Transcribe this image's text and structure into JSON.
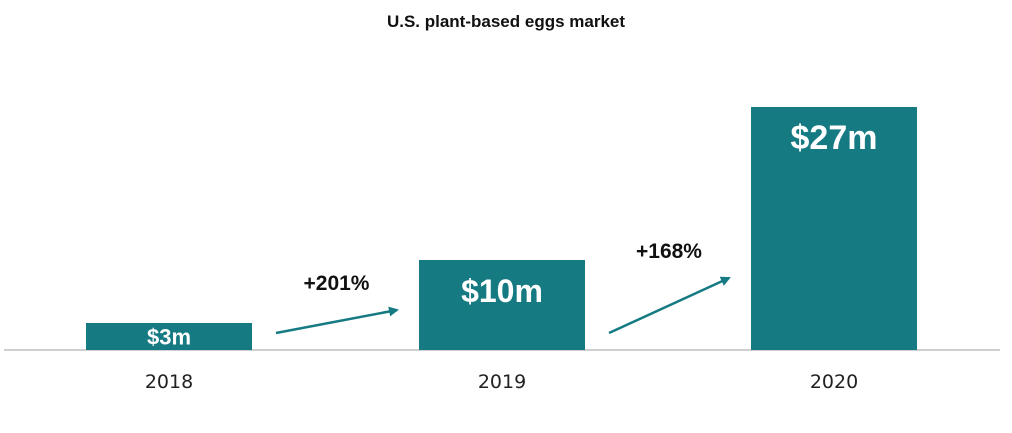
{
  "chart_data": {
    "type": "bar",
    "title": "U.S. plant-based eggs market",
    "xlabel": "",
    "ylabel": "",
    "categories": [
      "2018",
      "2019",
      "2020"
    ],
    "values": [
      3,
      10,
      27
    ],
    "value_labels": [
      "$3m",
      "$10m",
      "$27m"
    ],
    "unit": "$m",
    "ylim": [
      0,
      27
    ],
    "growth_annotations": [
      {
        "from": "2018",
        "to": "2019",
        "label": "+201%"
      },
      {
        "from": "2019",
        "to": "2020",
        "label": "+168%"
      }
    ],
    "colors": {
      "bar": "#157a82",
      "arrow": "#157a82",
      "axis": "#bfbfbf"
    },
    "grid": false,
    "legend": "none"
  }
}
